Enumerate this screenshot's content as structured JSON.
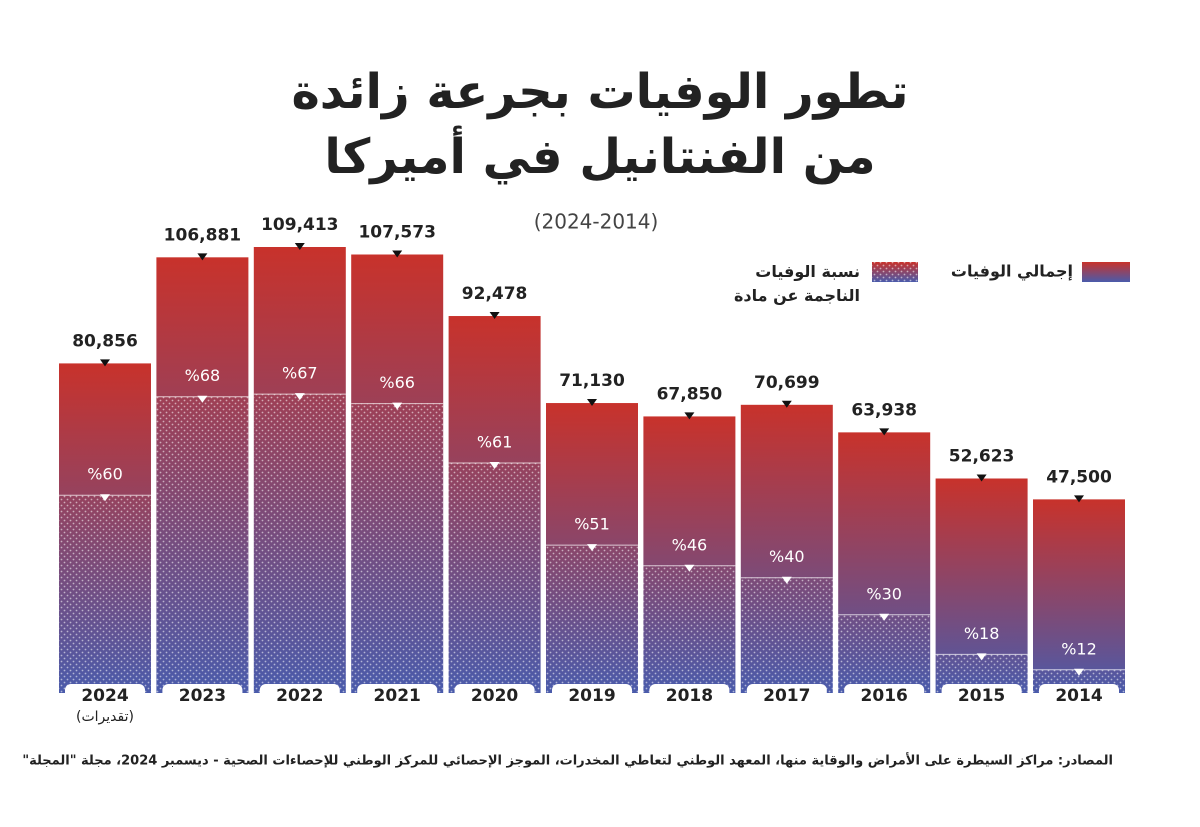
{
  "chart_data": {
    "type": "bar",
    "title": [
      "تطور الوفيات بجرعة زائدة",
      "من الفنتانيل في أميركا"
    ],
    "subtitle": "(2024-2014)",
    "categories": [
      "2024",
      "2023",
      "2022",
      "2021",
      "2020",
      "2019",
      "2018",
      "2017",
      "2016",
      "2015",
      "2014"
    ],
    "category_notes": [
      "(تقديرات)",
      null,
      null,
      null,
      null,
      null,
      null,
      null,
      null,
      null,
      null
    ],
    "series": [
      {
        "name": "إجمالي الوفيات",
        "color": [
          "#c8322b",
          "#4a5bab"
        ],
        "values": [
          80856,
          106881,
          109413,
          107573,
          92478,
          71130,
          67850,
          70699,
          63938,
          52623,
          47500
        ],
        "value_labels": [
          "80,856",
          "106,881",
          "109,413",
          "107,573",
          "92,478",
          "71,130",
          "67,850",
          "70,699",
          "63,938",
          "52,623",
          "47,500"
        ]
      },
      {
        "name": "نسبة الوفيات الناجمة عن مادة الفنتانيل",
        "color": "#ffffff",
        "values": [
          60,
          68,
          67,
          66,
          61,
          51,
          46,
          40,
          30,
          18,
          12
        ],
        "value_labels": [
          "%60",
          "%68",
          "%67",
          "%66",
          "%61",
          "%51",
          "%46",
          "%40",
          "%30",
          "%18",
          "%12"
        ]
      }
    ],
    "source": "المصادر: مراكز السيطرة على الأمراض والوقاية منها، المعهد الوطني لتعاطي المخدرات، الموجز الإحصائي للمركز الوطني للإحصاءات الصحية - ديسمبر 2024، مجلة \"المجلة\""
  }
}
